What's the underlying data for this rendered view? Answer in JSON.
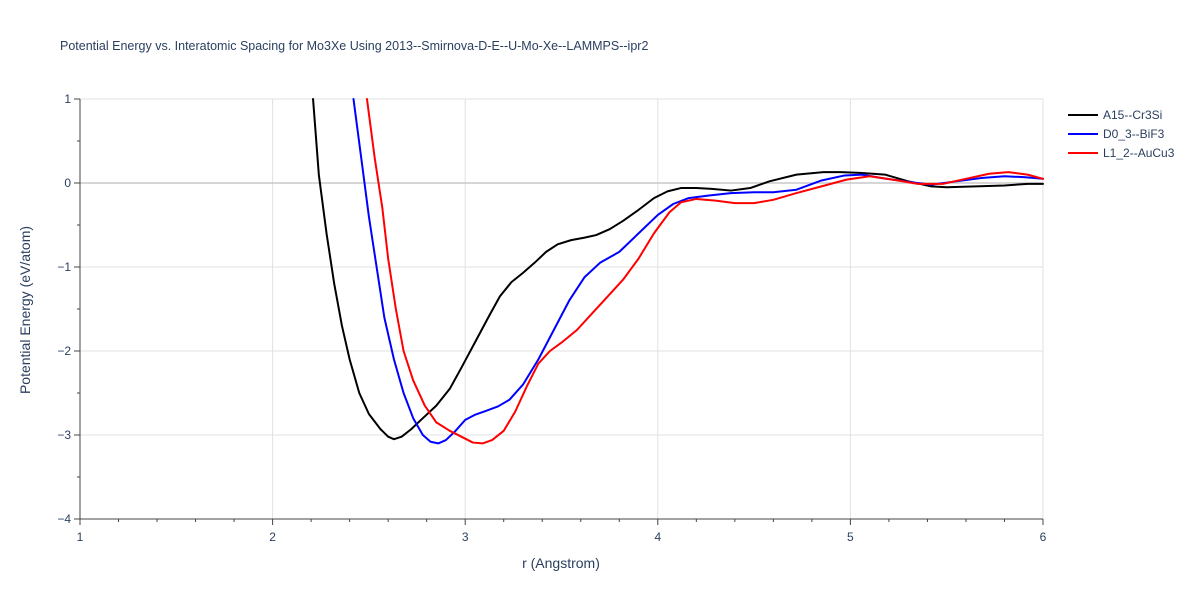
{
  "chart_data": {
    "type": "line",
    "title": "Potential Energy vs. Interatomic Spacing for Mo3Xe Using 2013--Smirnova-D-E--U-Mo-Xe--LAMMPS--ipr2",
    "xlabel": "r (Angstrom)",
    "ylabel": "Potential Energy (eV/atom)",
    "xlim": [
      1,
      6
    ],
    "ylim": [
      -4,
      1
    ],
    "x_ticks": [
      1,
      2,
      3,
      4,
      5,
      6
    ],
    "y_ticks": [
      -4,
      -3,
      -2,
      -1,
      0,
      1
    ],
    "grid": true,
    "legend_position": "top-right",
    "series": [
      {
        "name": "A15--Cr3Si",
        "color": "#000000",
        "points": [
          [
            2.21,
            1.0
          ],
          [
            2.24,
            0.1
          ],
          [
            2.28,
            -0.6
          ],
          [
            2.32,
            -1.2
          ],
          [
            2.36,
            -1.7
          ],
          [
            2.4,
            -2.1
          ],
          [
            2.45,
            -2.5
          ],
          [
            2.5,
            -2.75
          ],
          [
            2.56,
            -2.93
          ],
          [
            2.6,
            -3.02
          ],
          [
            2.63,
            -3.05
          ],
          [
            2.67,
            -3.02
          ],
          [
            2.72,
            -2.93
          ],
          [
            2.78,
            -2.8
          ],
          [
            2.85,
            -2.65
          ],
          [
            2.92,
            -2.45
          ],
          [
            2.98,
            -2.2
          ],
          [
            3.05,
            -1.9
          ],
          [
            3.12,
            -1.6
          ],
          [
            3.18,
            -1.35
          ],
          [
            3.24,
            -1.18
          ],
          [
            3.3,
            -1.07
          ],
          [
            3.36,
            -0.95
          ],
          [
            3.42,
            -0.82
          ],
          [
            3.48,
            -0.73
          ],
          [
            3.55,
            -0.68
          ],
          [
            3.62,
            -0.65
          ],
          [
            3.68,
            -0.62
          ],
          [
            3.75,
            -0.55
          ],
          [
            3.82,
            -0.45
          ],
          [
            3.9,
            -0.32
          ],
          [
            3.98,
            -0.18
          ],
          [
            4.05,
            -0.1
          ],
          [
            4.12,
            -0.06
          ],
          [
            4.2,
            -0.06
          ],
          [
            4.28,
            -0.07
          ],
          [
            4.38,
            -0.09
          ],
          [
            4.48,
            -0.06
          ],
          [
            4.58,
            0.02
          ],
          [
            4.72,
            0.1
          ],
          [
            4.86,
            0.13
          ],
          [
            4.95,
            0.13
          ],
          [
            5.05,
            0.12
          ],
          [
            5.18,
            0.1
          ],
          [
            5.3,
            0.02
          ],
          [
            5.42,
            -0.04
          ],
          [
            5.5,
            -0.05
          ],
          [
            5.65,
            -0.04
          ],
          [
            5.8,
            -0.03
          ],
          [
            5.92,
            -0.01
          ],
          [
            6.0,
            -0.01
          ]
        ]
      },
      {
        "name": "D0_3--BiF3",
        "color": "#0000ff",
        "points": [
          [
            2.42,
            1.0
          ],
          [
            2.46,
            0.3
          ],
          [
            2.5,
            -0.4
          ],
          [
            2.54,
            -1.0
          ],
          [
            2.58,
            -1.6
          ],
          [
            2.63,
            -2.1
          ],
          [
            2.68,
            -2.5
          ],
          [
            2.73,
            -2.8
          ],
          [
            2.78,
            -3.0
          ],
          [
            2.82,
            -3.08
          ],
          [
            2.86,
            -3.1
          ],
          [
            2.9,
            -3.06
          ],
          [
            2.95,
            -2.95
          ],
          [
            3.0,
            -2.82
          ],
          [
            3.05,
            -2.76
          ],
          [
            3.1,
            -2.72
          ],
          [
            3.17,
            -2.66
          ],
          [
            3.23,
            -2.58
          ],
          [
            3.3,
            -2.4
          ],
          [
            3.38,
            -2.1
          ],
          [
            3.46,
            -1.75
          ],
          [
            3.54,
            -1.4
          ],
          [
            3.62,
            -1.12
          ],
          [
            3.7,
            -0.95
          ],
          [
            3.8,
            -0.82
          ],
          [
            3.9,
            -0.6
          ],
          [
            4.0,
            -0.38
          ],
          [
            4.08,
            -0.25
          ],
          [
            4.16,
            -0.18
          ],
          [
            4.26,
            -0.15
          ],
          [
            4.38,
            -0.12
          ],
          [
            4.5,
            -0.11
          ],
          [
            4.6,
            -0.11
          ],
          [
            4.72,
            -0.08
          ],
          [
            4.85,
            0.03
          ],
          [
            4.97,
            0.09
          ],
          [
            5.06,
            0.1
          ],
          [
            5.16,
            0.06
          ],
          [
            5.28,
            0.02
          ],
          [
            5.42,
            -0.02
          ],
          [
            5.55,
            0.02
          ],
          [
            5.68,
            0.06
          ],
          [
            5.8,
            0.08
          ],
          [
            5.9,
            0.07
          ],
          [
            6.0,
            0.05
          ]
        ]
      },
      {
        "name": "L1_2--AuCu3",
        "color": "#ff0000",
        "points": [
          [
            2.49,
            1.0
          ],
          [
            2.53,
            0.3
          ],
          [
            2.57,
            -0.3
          ],
          [
            2.6,
            -0.9
          ],
          [
            2.64,
            -1.5
          ],
          [
            2.68,
            -2.0
          ],
          [
            2.73,
            -2.35
          ],
          [
            2.79,
            -2.65
          ],
          [
            2.85,
            -2.85
          ],
          [
            2.92,
            -2.95
          ],
          [
            2.98,
            -3.02
          ],
          [
            3.04,
            -3.09
          ],
          [
            3.09,
            -3.1
          ],
          [
            3.14,
            -3.06
          ],
          [
            3.2,
            -2.95
          ],
          [
            3.26,
            -2.72
          ],
          [
            3.32,
            -2.42
          ],
          [
            3.38,
            -2.15
          ],
          [
            3.44,
            -2.0
          ],
          [
            3.5,
            -1.9
          ],
          [
            3.58,
            -1.75
          ],
          [
            3.66,
            -1.55
          ],
          [
            3.74,
            -1.35
          ],
          [
            3.82,
            -1.15
          ],
          [
            3.9,
            -0.9
          ],
          [
            3.98,
            -0.6
          ],
          [
            4.06,
            -0.35
          ],
          [
            4.12,
            -0.23
          ],
          [
            4.2,
            -0.19
          ],
          [
            4.3,
            -0.21
          ],
          [
            4.4,
            -0.24
          ],
          [
            4.5,
            -0.24
          ],
          [
            4.6,
            -0.2
          ],
          [
            4.72,
            -0.12
          ],
          [
            4.85,
            -0.04
          ],
          [
            4.98,
            0.04
          ],
          [
            5.1,
            0.08
          ],
          [
            5.22,
            0.04
          ],
          [
            5.35,
            -0.01
          ],
          [
            5.48,
            -0.01
          ],
          [
            5.6,
            0.05
          ],
          [
            5.72,
            0.11
          ],
          [
            5.82,
            0.13
          ],
          [
            5.92,
            0.1
          ],
          [
            6.0,
            0.05
          ]
        ]
      }
    ]
  }
}
